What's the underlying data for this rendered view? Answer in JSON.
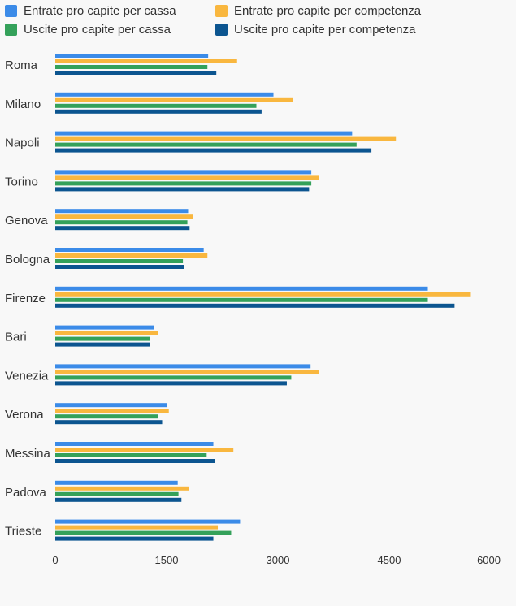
{
  "chart_data": {
    "type": "bar",
    "orientation": "horizontal",
    "categories": [
      "Roma",
      "Milano",
      "Napoli",
      "Torino",
      "Genova",
      "Bologna",
      "Firenze",
      "Bari",
      "Venezia",
      "Verona",
      "Messina",
      "Padova",
      "Trieste"
    ],
    "series": [
      {
        "name": "Entrate pro capite per cassa",
        "color": "#3b8be8",
        "values": [
          2060,
          2940,
          4000,
          3450,
          1790,
          2000,
          5020,
          1330,
          3440,
          1500,
          2130,
          1650,
          2490
        ]
      },
      {
        "name": "Entrate pro capite per competenza",
        "color": "#f9b73f",
        "values": [
          2450,
          3200,
          4590,
          3550,
          1860,
          2050,
          5600,
          1380,
          3550,
          1530,
          2400,
          1800,
          2190
        ]
      },
      {
        "name": "Uscite pro capite per cassa",
        "color": "#34a15a",
        "values": [
          2050,
          2710,
          4060,
          3450,
          1780,
          1720,
          5020,
          1270,
          3180,
          1390,
          2040,
          1660,
          2370
        ]
      },
      {
        "name": "Uscite pro capite per competenza",
        "color": "#0c5590",
        "values": [
          2170,
          2780,
          4260,
          3420,
          1810,
          1740,
          5380,
          1270,
          3120,
          1440,
          2150,
          1700,
          2130
        ]
      }
    ],
    "xlim": [
      0,
      6000
    ],
    "xticks": [
      "0",
      "1500",
      "3000",
      "4500",
      "6000"
    ],
    "grid": false,
    "legend_position": "top"
  }
}
